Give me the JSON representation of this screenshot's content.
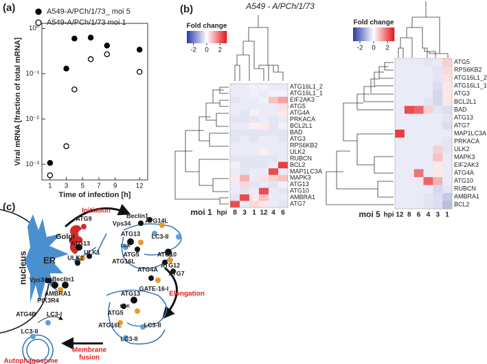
{
  "panel_labels": [
    "(a)",
    "(b)",
    "(c)"
  ],
  "panel_b_title": "A549 - A/PCh/1/73",
  "chart_data": [
    {
      "type": "scatter",
      "x_label": "Time of infection [h]",
      "y_label": "Viral mRNA  [fraction of total mRNA]",
      "x": [
        1,
        3,
        4,
        6,
        8,
        12
      ],
      "series": [
        {
          "name": "A549-A/PCh/1/73_ moi 5",
          "color": "#000000",
          "filled": true,
          "values": [
            0.00107,
            0.13,
            0.6,
            0.63,
            0.42,
            0.34
          ]
        },
        {
          "name": "A549-A/PCh/1/73  moi 1",
          "color": "#000000",
          "filled": false,
          "values": [
            0.00057,
            0.0025,
            0.045,
            0.21,
            0.27,
            0.11
          ]
        }
      ],
      "xlim": [
        0,
        13
      ],
      "xticks": [
        1,
        3,
        5,
        7,
        9,
        12
      ],
      "ylim": [
        0.00045,
        1.3
      ],
      "log_y": true,
      "yticks": [
        {
          "value": 0.001,
          "label": "10⁻³"
        },
        {
          "value": 0.01,
          "label": "10⁻²"
        },
        {
          "value": 0.1,
          "label": "10⁻¹"
        },
        {
          "value": 1,
          "label": "10⁰"
        }
      ]
    },
    {
      "type": "heatmap",
      "title": "moi 1",
      "x_label": "hpi",
      "colorbar_title": "Fold change",
      "categories": [
        "8",
        "3",
        "1",
        "12",
        "4",
        "6"
      ],
      "rows": [
        "ATG16L1_2",
        "ATG16L1_1",
        "EIF2AK3",
        "ATG5",
        "ATG4A",
        "PRKACA",
        "BCL2L1",
        "BAD",
        "ATG3",
        "RPS6KB2",
        "ULK2",
        "RUBCN",
        "BCL2",
        "MAP1LC3A",
        "MAPK3",
        "ATG13",
        "ATG10",
        "AMBRA1",
        "ATG7"
      ],
      "values": [
        [
          -0.3,
          -0.3,
          -0.2,
          -0.2,
          -0.3,
          -0.3
        ],
        [
          -0.3,
          -0.3,
          -0.2,
          -0.3,
          -0.2,
          -0.2
        ],
        [
          -0.4,
          -0.3,
          -0.3,
          -0.2,
          0.8,
          1.2
        ],
        [
          -0.3,
          -0.3,
          -0.3,
          -0.3,
          -0.3,
          0.4
        ],
        [
          -0.3,
          -0.4,
          -0.2,
          -0.3,
          -0.3,
          0.3
        ],
        [
          -0.4,
          -0.4,
          -0.4,
          -0.3,
          -0.4,
          -0.3
        ],
        [
          -0.3,
          -0.3,
          0.2,
          0.3,
          -0.4,
          -0.2
        ],
        [
          -0.4,
          -0.4,
          -0.4,
          -0.4,
          -0.4,
          -0.4
        ],
        [
          -0.4,
          -0.3,
          -0.4,
          -0.3,
          -0.3,
          -0.4
        ],
        [
          -0.3,
          -0.3,
          -0.3,
          -0.3,
          -0.3,
          -0.3
        ],
        [
          -0.3,
          -0.3,
          -0.3,
          0.2,
          -0.3,
          -0.3
        ],
        [
          -0.4,
          -0.4,
          -0.4,
          -0.4,
          -0.4,
          -0.3
        ],
        [
          -0.2,
          -0.4,
          -0.4,
          -0.4,
          -0.3,
          2.5
        ],
        [
          -0.3,
          -0.4,
          -0.3,
          -0.3,
          2.3,
          -0.3
        ],
        [
          0.3,
          1.0,
          -0.3,
          0.4,
          0.6,
          0.8
        ],
        [
          -0.3,
          0.5,
          -0.4,
          -0.3,
          -0.4,
          -0.2
        ],
        [
          -0.3,
          -0.4,
          -0.3,
          2.3,
          -0.3,
          -0.4
        ],
        [
          -0.4,
          2.3,
          0.3,
          0.8,
          -0.3,
          -0.3
        ],
        [
          2.3,
          -0.3,
          0.5,
          0.3,
          -0.3,
          -0.4
        ]
      ],
      "clim": [
        -3,
        3
      ],
      "colorbar_ticks": [
        -2,
        0,
        2
      ],
      "colors": [
        "#2a3aa6",
        "#ffffff",
        "#e3161c"
      ]
    },
    {
      "type": "heatmap",
      "title": "moi 5",
      "x_label": "hpi",
      "colorbar_title": "Fold change",
      "categories": [
        "12",
        "8",
        "6",
        "4",
        "3",
        "1"
      ],
      "rows": [
        "ATG5",
        "RPS6KB2",
        "ATG16L1_2",
        "ATG16L1_1",
        "ATG3",
        "BCL2L1",
        "BAD",
        "ATG13",
        "ATG7",
        "MAP1LC3A",
        "PRKACA",
        "ULK2",
        "MAPK3",
        "EIF2AK3",
        "ATG4A",
        "ATG10",
        "RUBCN",
        "AMBRA1",
        "BCL2"
      ],
      "values": [
        [
          -0.3,
          -0.3,
          -0.3,
          -0.4,
          -0.3,
          0.6
        ],
        [
          -0.3,
          -0.3,
          -0.3,
          -0.3,
          -0.4,
          0.5
        ],
        [
          -0.3,
          -0.3,
          -0.3,
          -0.3,
          -0.4,
          0.4
        ],
        [
          -0.3,
          -0.3,
          -0.3,
          -0.3,
          -0.5,
          0.3
        ],
        [
          -0.3,
          -0.3,
          -0.3,
          -0.3,
          -0.6,
          0.3
        ],
        [
          -0.3,
          -0.3,
          -0.3,
          -0.4,
          -0.6,
          0.3
        ],
        [
          -0.3,
          2.3,
          2.0,
          0.6,
          -0.4,
          -0.5
        ],
        [
          -0.3,
          -0.3,
          -0.3,
          -0.3,
          -0.3,
          -0.4
        ],
        [
          -0.3,
          -0.3,
          -0.3,
          -0.3,
          -0.3,
          -0.5
        ],
        [
          2.5,
          -0.3,
          -0.3,
          -0.3,
          -0.3,
          -0.3
        ],
        [
          -0.3,
          -0.3,
          -0.3,
          -0.3,
          -0.3,
          -0.4
        ],
        [
          -0.3,
          -0.3,
          -0.3,
          -0.3,
          0.6,
          -0.4
        ],
        [
          -0.3,
          -0.3,
          -0.3,
          -0.3,
          0.8,
          -0.3
        ],
        [
          -0.3,
          -0.3,
          -0.3,
          -0.3,
          0.3,
          -0.3
        ],
        [
          -0.3,
          -0.3,
          1.8,
          -0.3,
          0.3,
          -0.3
        ],
        [
          -0.3,
          -0.3,
          -0.3,
          2.0,
          1.0,
          -0.3
        ],
        [
          -0.3,
          -0.3,
          -0.3,
          -0.3,
          -0.6,
          -0.4
        ],
        [
          -0.3,
          -0.3,
          -0.3,
          -0.4,
          -0.5,
          -0.8
        ],
        [
          -0.3,
          -0.3,
          -0.3,
          -0.4,
          -0.5,
          -1.0
        ]
      ],
      "clim": [
        -3,
        3
      ],
      "colorbar_ticks": [
        -2,
        0,
        2
      ],
      "colors": [
        "#2a3aa6",
        "#ffffff",
        "#e3161c"
      ]
    }
  ],
  "diagram": {
    "labels": [
      "nucleus",
      "ER",
      "Golgi",
      "Initiation",
      "ATG9",
      "Beclin1",
      "Vps34",
      "ATG14L",
      "ATG13",
      "LC3-II",
      "ATG13",
      "ULK1",
      "ULK2",
      "ULK",
      "ATG5",
      "ATG16L",
      "ATG10",
      "ATG12",
      "ATG7",
      "Elongation",
      "ATG4A",
      "Vps34",
      "Beclin1",
      "AMBRA1",
      "PIK3R4",
      "GATE-16-I",
      "ATG13",
      "ULK",
      "ATG5",
      "ATG16L",
      "LC3-II",
      "LC3-II",
      "ATG4B",
      "LC3-I",
      "LC3-II",
      "Autophagosome",
      "Membrane",
      "fusion"
    ]
  }
}
